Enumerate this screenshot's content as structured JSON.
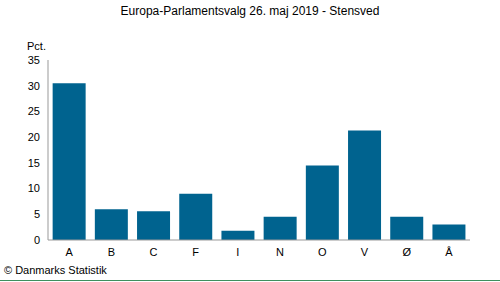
{
  "chart_data": {
    "type": "bar",
    "title": "Europa-Parlamentsvalg 26. maj 2019 - Stensved",
    "y_label": "Pct.",
    "source": "© Danmarks Statistik",
    "categories": [
      "A",
      "B",
      "C",
      "F",
      "I",
      "N",
      "O",
      "V",
      "Ø",
      "Å"
    ],
    "values": [
      30.5,
      6.0,
      5.6,
      9.0,
      1.8,
      4.5,
      14.5,
      21.3,
      4.5,
      3.0
    ],
    "color": "#00638f",
    "ylim": [
      0,
      35
    ],
    "yticks": [
      0,
      5,
      10,
      15,
      20,
      25,
      30,
      35
    ],
    "grid": false
  }
}
